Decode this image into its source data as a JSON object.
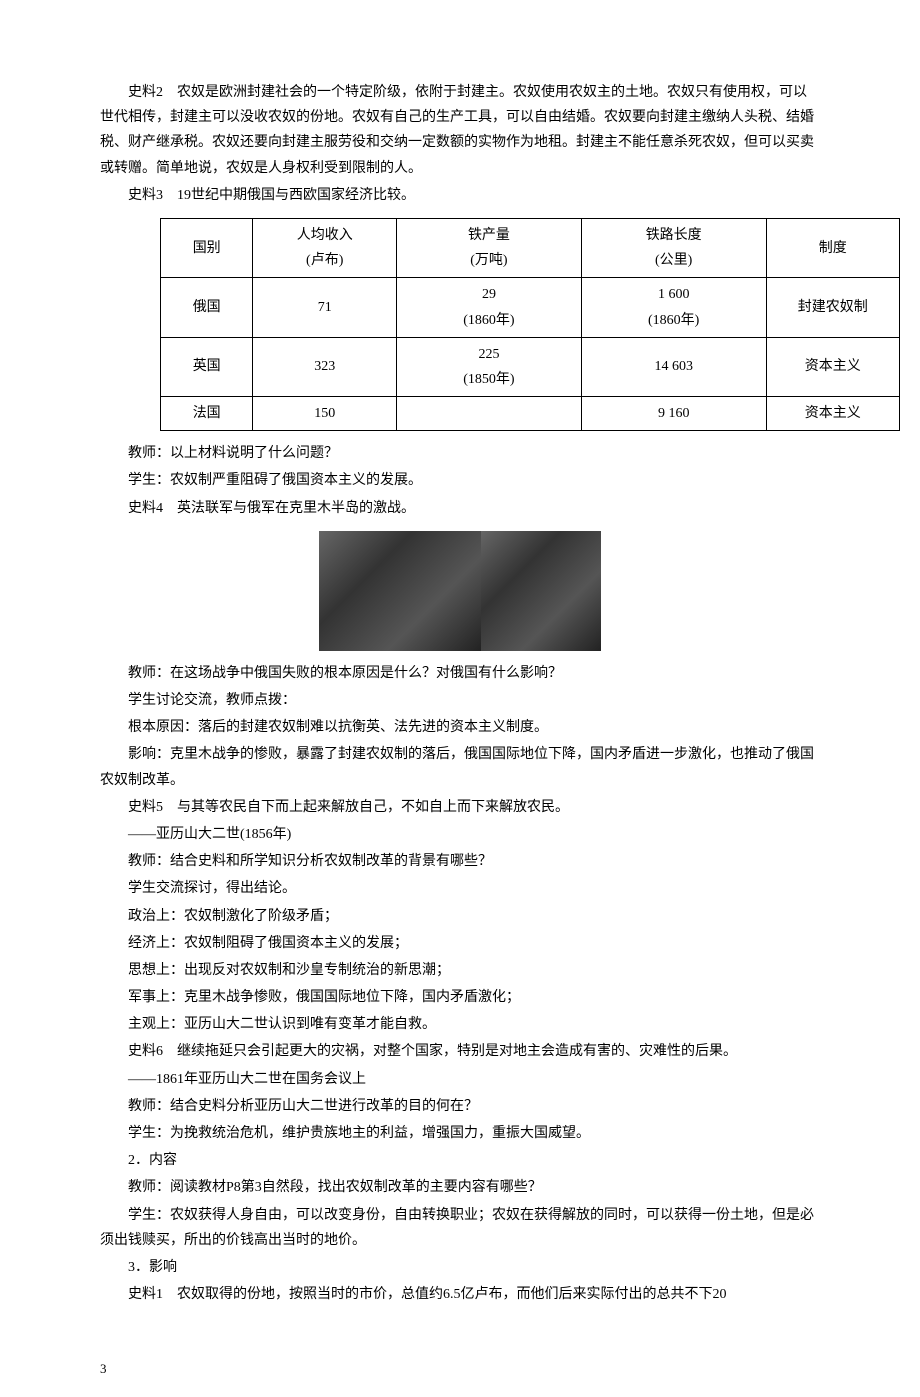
{
  "p1": "史料2　农奴是欧洲封建社会的一个特定阶级，依附于封建主。农奴使用农奴主的土地。农奴只有使用权，可以世代相传，封建主可以没收农奴的份地。农奴有自己的生产工具，可以自由结婚。农奴要向封建主缴纳人头税、结婚税、财产继承税。农奴还要向封建主服劳役和交纳一定数额的实物作为地租。封建主不能任意杀死农奴，但可以买卖或转赠。简单地说，农奴是人身权利受到限制的人。",
  "p2": "史料3　19世纪中期俄国与西欧国家经济比较。",
  "table": {
    "headers": {
      "nation": "国别",
      "income_l1": "人均收入",
      "income_l2": "(卢布)",
      "iron_l1": "铁产量",
      "iron_l2": "(万吨)",
      "rail_l1": "铁路长度",
      "rail_l2": "(公里)",
      "system": "制度"
    },
    "rows": [
      {
        "nation": "俄国",
        "income": "71",
        "iron_l1": "29",
        "iron_l2": "(1860年)",
        "rail_l1": "1 600",
        "rail_l2": "(1860年)",
        "system": "封建农奴制"
      },
      {
        "nation": "英国",
        "income": "323",
        "iron_l1": "225",
        "iron_l2": "(1850年)",
        "rail_l1": "14 603",
        "rail_l2": "",
        "system": "资本主义"
      },
      {
        "nation": "法国",
        "income": "150",
        "iron_l1": "",
        "iron_l2": "",
        "rail_l1": "9 160",
        "rail_l2": "",
        "system": "资本主义"
      }
    ]
  },
  "p3": "教师：以上材料说明了什么问题？",
  "p4": "学生：农奴制严重阻碍了俄国资本主义的发展。",
  "p5": "史料4　英法联军与俄军在克里木半岛的激战。",
  "p6": "教师：在这场战争中俄国失败的根本原因是什么？对俄国有什么影响？",
  "p7": "学生讨论交流，教师点拨：",
  "p8": "根本原因：落后的封建农奴制难以抗衡英、法先进的资本主义制度。",
  "p9": "影响：克里木战争的惨败，暴露了封建农奴制的落后，俄国国际地位下降，国内矛盾进一步激化，也推动了俄国农奴制改革。",
  "p10": "史料5　与其等农民自下而上起来解放自己，不如自上而下来解放农民。",
  "p11": "——亚历山大二世(1856年)",
  "p12": "教师：结合史料和所学知识分析农奴制改革的背景有哪些？",
  "p13": "学生交流探讨，得出结论。",
  "p14": "政治上：农奴制激化了阶级矛盾；",
  "p15": "经济上：农奴制阻碍了俄国资本主义的发展；",
  "p16": "思想上：出现反对农奴制和沙皇专制统治的新思潮；",
  "p17": "军事上：克里木战争惨败，俄国国际地位下降，国内矛盾激化；",
  "p18": "主观上：亚历山大二世认识到唯有变革才能自救。",
  "p19": "史料6　继续拖延只会引起更大的灾祸，对整个国家，特别是对地主会造成有害的、灾难性的后果。",
  "p20": "——1861年亚历山大二世在国务会议上",
  "p21": "教师：结合史料分析亚历山大二世进行改革的目的何在？",
  "p22": "学生：为挽救统治危机，维护贵族地主的利益，增强国力，重振大国威望。",
  "p23": "2．内容",
  "p24": "教师：阅读教材P8第3自然段，找出农奴制改革的主要内容有哪些？",
  "p25": "学生：农奴获得人身自由，可以改变身份，自由转换职业；农奴在获得解放的同时，可以获得一份土地，但是必须出钱赎买，所出的价钱高出当时的地价。",
  "p26": "3．影响",
  "p27": "史料1　农奴取得的份地，按照当时的市价，总值约6.5亿卢布，而他们后来实际付出的总共不下20",
  "pageNum": "3"
}
